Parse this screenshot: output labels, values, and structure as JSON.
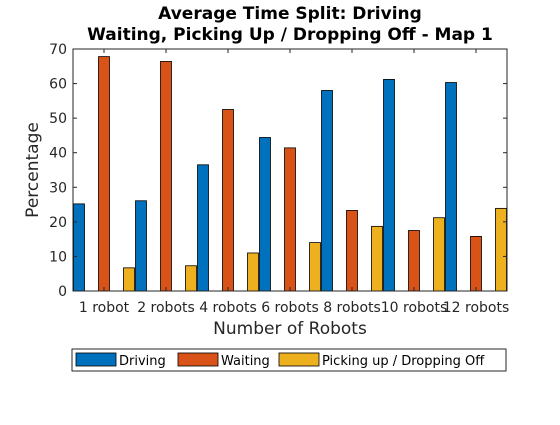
{
  "chart_data": {
    "type": "bar",
    "title": [
      "Average Time Split: Driving",
      "Waiting, Picking Up / Dropping Off - Map 1"
    ],
    "xlabel": "Number of Robots",
    "ylabel": "Percentage",
    "categories": [
      "1 robot",
      "2 robots",
      "4 robots",
      "6 robots",
      "8 robots",
      "10 robots",
      "12 robots"
    ],
    "ylim": [
      0,
      70
    ],
    "yticks": [
      "0",
      "10",
      "20",
      "30",
      "40",
      "50",
      "60",
      "70"
    ],
    "grid": false,
    "legend_position": "bottom",
    "series": [
      {
        "name": "Driving",
        "color": "#0072bd",
        "values": [
          25.2,
          26.1,
          36.5,
          44.4,
          58.0,
          61.2,
          60.3
        ]
      },
      {
        "name": "Waiting",
        "color": "#d95319",
        "values": [
          67.8,
          66.4,
          52.5,
          41.4,
          23.3,
          17.5,
          15.8
        ]
      },
      {
        "name": "Picking up / Dropping Off",
        "color": "#edb120",
        "values": [
          6.7,
          7.3,
          11.0,
          14.0,
          18.7,
          21.2,
          23.9
        ]
      }
    ]
  }
}
